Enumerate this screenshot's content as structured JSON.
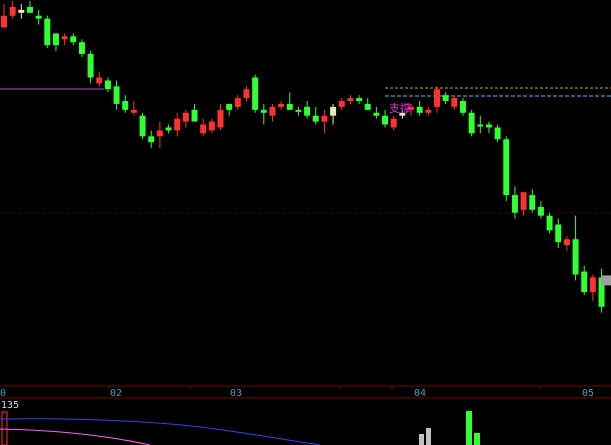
{
  "chart_data": {
    "type": "candlestick",
    "price_range": [
      0,
      100
    ],
    "candles": [
      {
        "o": 96,
        "h": 100,
        "l": 92,
        "c": 92,
        "up": true
      },
      {
        "o": 99,
        "h": 101,
        "l": 95,
        "c": 96,
        "up": true
      },
      {
        "o": 97,
        "h": 100,
        "l": 95,
        "c": 98,
        "up": false,
        "neutral": true
      },
      {
        "o": 99,
        "h": 101,
        "l": 97,
        "c": 97,
        "up": false
      },
      {
        "o": 96,
        "h": 98,
        "l": 93,
        "c": 95,
        "up": false
      },
      {
        "o": 95,
        "h": 96,
        "l": 85,
        "c": 86,
        "up": false
      },
      {
        "o": 86,
        "h": 90,
        "l": 84,
        "c": 90,
        "up": false
      },
      {
        "o": 88,
        "h": 90,
        "l": 86,
        "c": 89,
        "up": true
      },
      {
        "o": 89,
        "h": 90,
        "l": 86,
        "c": 87,
        "up": false
      },
      {
        "o": 87,
        "h": 88,
        "l": 82,
        "c": 83,
        "up": false
      },
      {
        "o": 83,
        "h": 84,
        "l": 73,
        "c": 75,
        "up": false
      },
      {
        "o": 75,
        "h": 77,
        "l": 72,
        "c": 73,
        "up": true
      },
      {
        "o": 74,
        "h": 75,
        "l": 70,
        "c": 71,
        "up": false
      },
      {
        "o": 72,
        "h": 74,
        "l": 64,
        "c": 66,
        "up": false
      },
      {
        "o": 67,
        "h": 69,
        "l": 63,
        "c": 64,
        "up": false
      },
      {
        "o": 64,
        "h": 67,
        "l": 62,
        "c": 63,
        "up": true
      },
      {
        "o": 62,
        "h": 63,
        "l": 54,
        "c": 55,
        "up": false
      },
      {
        "o": 55,
        "h": 57,
        "l": 51,
        "c": 53,
        "up": false
      },
      {
        "o": 55,
        "h": 60,
        "l": 51,
        "c": 57,
        "up": true
      },
      {
        "o": 57,
        "h": 59,
        "l": 56,
        "c": 58,
        "up": false
      },
      {
        "o": 57,
        "h": 63,
        "l": 55,
        "c": 61,
        "up": true
      },
      {
        "o": 60,
        "h": 64,
        "l": 58,
        "c": 63,
        "up": true
      },
      {
        "o": 64,
        "h": 66,
        "l": 60,
        "c": 60,
        "up": false
      },
      {
        "o": 59,
        "h": 61,
        "l": 55,
        "c": 56,
        "up": true
      },
      {
        "o": 57,
        "h": 61,
        "l": 56,
        "c": 60,
        "up": true
      },
      {
        "o": 58,
        "h": 66,
        "l": 57,
        "c": 64,
        "up": true
      },
      {
        "o": 64,
        "h": 66,
        "l": 62,
        "c": 66,
        "up": false
      },
      {
        "o": 65,
        "h": 69,
        "l": 64,
        "c": 68,
        "up": true
      },
      {
        "o": 68,
        "h": 72,
        "l": 67,
        "c": 71,
        "up": true
      },
      {
        "o": 75,
        "h": 76,
        "l": 63,
        "c": 64,
        "up": false
      },
      {
        "o": 64,
        "h": 66,
        "l": 59,
        "c": 63,
        "up": false
      },
      {
        "o": 62,
        "h": 66,
        "l": 60,
        "c": 65,
        "up": true
      },
      {
        "o": 65,
        "h": 67,
        "l": 64,
        "c": 66,
        "up": true
      },
      {
        "o": 66,
        "h": 70,
        "l": 64,
        "c": 64,
        "up": false
      },
      {
        "o": 64,
        "h": 65,
        "l": 62,
        "c": 64,
        "up": false
      },
      {
        "o": 65,
        "h": 67,
        "l": 61,
        "c": 62,
        "up": false
      },
      {
        "o": 62,
        "h": 65,
        "l": 59,
        "c": 60,
        "up": false
      },
      {
        "o": 60,
        "h": 64,
        "l": 56,
        "c": 62,
        "up": true
      },
      {
        "o": 62,
        "h": 66,
        "l": 59,
        "c": 65,
        "up": false,
        "neutral": true
      },
      {
        "o": 65,
        "h": 68,
        "l": 64,
        "c": 67,
        "up": true
      },
      {
        "o": 67,
        "h": 69,
        "l": 66,
        "c": 68,
        "up": true
      },
      {
        "o": 68,
        "h": 69,
        "l": 66,
        "c": 67,
        "up": false
      },
      {
        "o": 66,
        "h": 68,
        "l": 64,
        "c": 64,
        "up": false
      },
      {
        "o": 63,
        "h": 65,
        "l": 61,
        "c": 62,
        "up": false
      },
      {
        "o": 62,
        "h": 64,
        "l": 58,
        "c": 59,
        "up": false
      },
      {
        "o": 58,
        "h": 62,
        "l": 57,
        "c": 61,
        "up": true
      },
      {
        "o": 62,
        "h": 64,
        "l": 61,
        "c": 63,
        "up": false,
        "neutral": true
      },
      {
        "o": 64,
        "h": 66,
        "l": 62,
        "c": 65,
        "up": true
      },
      {
        "o": 65,
        "h": 67,
        "l": 62,
        "c": 63,
        "up": false
      },
      {
        "o": 63,
        "h": 65,
        "l": 62,
        "c": 64,
        "up": true
      },
      {
        "o": 65,
        "h": 72,
        "l": 63,
        "c": 71,
        "up": true
      },
      {
        "o": 69,
        "h": 70,
        "l": 66,
        "c": 67,
        "up": false
      },
      {
        "o": 68,
        "h": 69,
        "l": 64,
        "c": 65,
        "up": true
      },
      {
        "o": 67,
        "h": 68,
        "l": 62,
        "c": 63,
        "up": false
      },
      {
        "o": 63,
        "h": 64,
        "l": 55,
        "c": 56,
        "up": false
      },
      {
        "o": 59,
        "h": 62,
        "l": 56,
        "c": 59,
        "up": false
      },
      {
        "o": 59,
        "h": 60,
        "l": 56,
        "c": 58,
        "up": false
      },
      {
        "o": 58,
        "h": 59,
        "l": 53,
        "c": 54,
        "up": false
      },
      {
        "o": 54,
        "h": 55,
        "l": 33,
        "c": 35,
        "up": false
      },
      {
        "o": 35,
        "h": 38,
        "l": 27,
        "c": 29,
        "up": false
      },
      {
        "o": 30,
        "h": 36,
        "l": 28,
        "c": 36,
        "up": true
      },
      {
        "o": 35,
        "h": 37,
        "l": 29,
        "c": 30,
        "up": false
      },
      {
        "o": 31,
        "h": 33,
        "l": 27,
        "c": 28,
        "up": false
      },
      {
        "o": 28,
        "h": 29,
        "l": 22,
        "c": 23,
        "up": false
      },
      {
        "o": 25,
        "h": 27,
        "l": 17,
        "c": 19,
        "up": false
      },
      {
        "o": 18,
        "h": 21,
        "l": 16,
        "c": 20,
        "up": true
      },
      {
        "o": 20,
        "h": 28,
        "l": 6,
        "c": 8,
        "up": false
      },
      {
        "o": 9,
        "h": 11,
        "l": 1,
        "c": 2,
        "up": false
      },
      {
        "o": 2,
        "h": 8,
        "l": -1,
        "c": 7,
        "up": true
      },
      {
        "o": 7,
        "h": 10,
        "l": -5,
        "c": -3,
        "up": false
      }
    ],
    "support_price": 62,
    "resistance_price": 65,
    "left_line_price": 64,
    "annotation": "支撑",
    "x_tick_labels": [
      "0",
      "02",
      "03",
      "04",
      "05"
    ],
    "volume_axis_label": "135",
    "colors": {
      "up": "#ff3030",
      "down": "#30ff30",
      "neutral": "#e8e8b0",
      "grid": "#800000",
      "axis_text": "#3aa0c8",
      "support_line": "#40c0ff",
      "resistance_line": "#c8a040",
      "left_line": "#c040e0",
      "annotation": "#e030e0",
      "vol_line_blue": "#3040ff",
      "vol_line_pink": "#ff60ff",
      "current_marker": "#a0a0a0"
    }
  }
}
